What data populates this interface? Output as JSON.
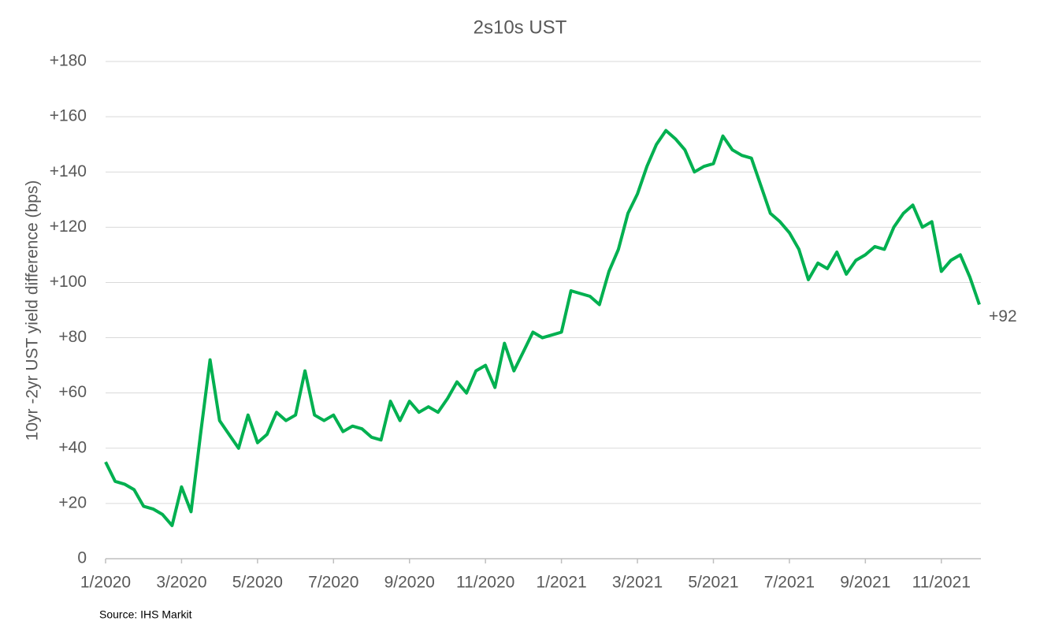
{
  "chart_data": {
    "type": "line",
    "title": "2s10s UST",
    "y_label": "10yr -2yr UST yield difference (bps)",
    "source": "Source: IHS Markit",
    "categories": [
      "1/2020",
      null,
      null,
      null,
      null,
      null,
      null,
      null,
      "3/2020",
      null,
      null,
      null,
      null,
      null,
      null,
      null,
      "5/2020",
      null,
      null,
      null,
      null,
      null,
      null,
      null,
      "7/2020",
      null,
      null,
      null,
      null,
      null,
      null,
      null,
      "9/2020",
      null,
      null,
      null,
      null,
      null,
      null,
      null,
      "11/2020",
      null,
      null,
      null,
      null,
      null,
      null,
      null,
      "1/2021",
      null,
      null,
      null,
      null,
      null,
      null,
      null,
      "3/2021",
      null,
      null,
      null,
      null,
      null,
      null,
      null,
      "5/2021",
      null,
      null,
      null,
      null,
      null,
      null,
      null,
      "7/2021",
      null,
      null,
      null,
      null,
      null,
      null,
      null,
      "9/2021",
      null,
      null,
      null,
      null,
      null,
      null,
      null,
      "11/2021",
      null,
      null,
      null,
      null
    ],
    "series": [
      {
        "name": "2s10s",
        "color": "#00b050",
        "values": [
          35,
          28,
          27,
          25,
          19,
          18,
          16,
          12,
          26,
          17,
          45,
          72,
          50,
          45,
          40,
          52,
          42,
          45,
          53,
          50,
          52,
          68,
          52,
          50,
          52,
          46,
          48,
          47,
          44,
          43,
          57,
          50,
          57,
          53,
          55,
          53,
          58,
          64,
          60,
          68,
          70,
          62,
          78,
          68,
          75,
          82,
          80,
          81,
          82,
          97,
          96,
          95,
          92,
          104,
          112,
          125,
          132,
          142,
          150,
          155,
          152,
          148,
          140,
          142,
          143,
          153,
          148,
          146,
          145,
          135,
          125,
          122,
          118,
          112,
          101,
          107,
          105,
          111,
          103,
          108,
          110,
          113,
          112,
          120,
          125,
          128,
          120,
          122,
          104,
          108,
          110,
          102,
          92
        ],
        "value_labels": [
          null,
          null,
          null,
          null,
          null,
          null,
          null,
          null,
          null,
          null,
          null,
          null,
          null,
          null,
          null,
          null,
          null,
          null,
          null,
          null,
          null,
          null,
          null,
          null,
          null,
          null,
          null,
          null,
          null,
          null,
          null,
          null,
          null,
          null,
          null,
          null,
          null,
          null,
          null,
          null,
          null,
          null,
          null,
          null,
          null,
          null,
          null,
          null,
          null,
          null,
          null,
          null,
          null,
          null,
          null,
          null,
          null,
          null,
          null,
          null,
          null,
          null,
          null,
          null,
          null,
          null,
          null,
          null,
          null,
          null,
          null,
          null,
          null,
          null,
          null,
          null,
          null,
          null,
          null,
          null,
          null,
          null,
          null,
          null,
          null,
          null,
          null,
          null,
          null,
          null,
          null,
          null,
          "+92"
        ]
      }
    ],
    "ylim": [
      0,
      180
    ],
    "yticks": [
      0,
      {
        "value": 20,
        "label": "+20"
      },
      {
        "value": 40,
        "label": "+40"
      },
      {
        "value": 60,
        "label": "+60"
      },
      {
        "value": 80,
        "label": "+80"
      },
      {
        "value": 100,
        "label": "+100"
      },
      {
        "value": 120,
        "label": "+120"
      },
      {
        "value": 140,
        "label": "+140"
      },
      {
        "value": 160,
        "label": "+160"
      },
      {
        "value": 180,
        "label": "+180"
      }
    ],
    "grid": true
  }
}
